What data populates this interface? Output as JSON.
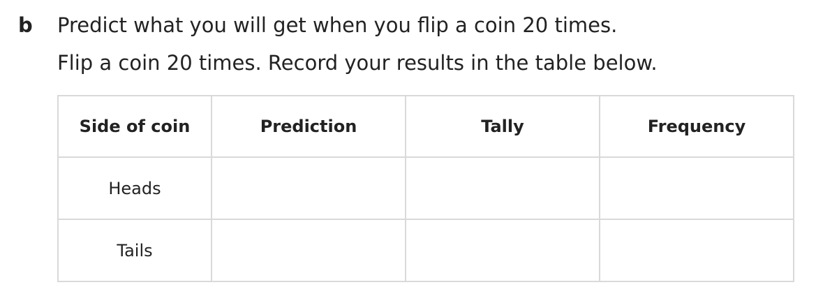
{
  "question": {
    "label": "b",
    "line1": "Predict what you will get when you flip a coin 20 times.",
    "line2": "Flip a coin 20 times. Record your results in the table below."
  },
  "table": {
    "headers": [
      "Side of coin",
      "Prediction",
      "Tally",
      "Frequency"
    ],
    "rows": [
      {
        "side": "Heads",
        "prediction": "",
        "tally": "",
        "frequency": ""
      },
      {
        "side": "Tails",
        "prediction": "",
        "tally": "",
        "frequency": ""
      }
    ]
  }
}
